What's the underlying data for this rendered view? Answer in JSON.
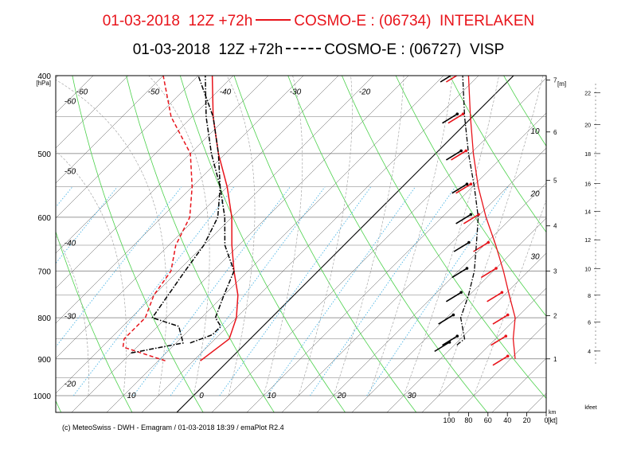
{
  "header": {
    "line1": {
      "date": "01-03-2018",
      "run": "12Z +72h",
      "model": "COSMO-E : (06734)",
      "station": "INTERLAKEN"
    },
    "line2": {
      "date": "01-03-2018",
      "run": "12Z +72h",
      "model": "COSMO-E : (06727)",
      "station": "VISP"
    }
  },
  "colors": {
    "interlaken": "#e8141b",
    "visp": "#000000",
    "isotherm": "#555555",
    "dry_adiabat": "#4bd14b",
    "moist_adiabat": "#9a9a9a",
    "mixing_ratio": "#4fb6e6"
  },
  "chart_data": {
    "type": "line",
    "subtype": "emagram (skew-T log-p)",
    "y_axis": {
      "label": "[hPa]",
      "scale": "log",
      "ylim": [
        1000,
        400
      ],
      "ticks": [
        "400",
        "500",
        "600",
        "700",
        "800",
        "900",
        "1000"
      ]
    },
    "x_axis": {
      "label": "",
      "ticks": [
        "10",
        "0",
        "10",
        "20",
        "30"
      ],
      "xlim": [
        -22,
        38
      ]
    },
    "isotherm_labels": [
      "-60",
      "-50",
      "-40",
      "-30",
      "-20",
      "-60",
      "-50",
      "-40",
      "-30",
      "-20",
      "10",
      "20",
      "30"
    ],
    "altitude_km": {
      "label": "[m]",
      "unit_label": "km",
      "ticks": [
        "1",
        "2",
        "3",
        "4",
        "5",
        "6",
        "7"
      ]
    },
    "altitude_kfeet": {
      "unit_label": "kfeet",
      "ticks": [
        "4",
        "6",
        "8",
        "10",
        "12",
        "14",
        "16",
        "18",
        "20",
        "22"
      ]
    },
    "wind_speed_axis": {
      "unit_label": "[kt]",
      "ticks": [
        "100",
        "80",
        "60",
        "40",
        "20",
        "0"
      ]
    },
    "series": [
      {
        "name": "INTERLAKEN",
        "line_style": "solid / dashed",
        "temperature": {
          "p": [
            905,
            850,
            800,
            750,
            700,
            650,
            600,
            550,
            500,
            450,
            400
          ],
          "T": [
            -4,
            -3,
            -5,
            -8,
            -12,
            -16,
            -20,
            -25,
            -31,
            -37,
            -43
          ]
        },
        "dewpoint": {
          "p": [
            905,
            870,
            850,
            800,
            750,
            700,
            650,
            600,
            550,
            500,
            450,
            400
          ],
          "T": [
            -9,
            -17,
            -18,
            -18,
            -20,
            -21,
            -24,
            -26,
            -30,
            -35,
            -43,
            -50
          ]
        },
        "wind_profile": {
          "p": [
            900,
            850,
            800,
            750,
            700,
            650,
            600,
            550,
            500,
            450,
            400
          ],
          "speed_kt": [
            32,
            34,
            32,
            38,
            44,
            52,
            62,
            70,
            75,
            78,
            80
          ]
        }
      },
      {
        "name": "VISP",
        "line_style": "dash-dot",
        "temperature": {
          "p": [
            860,
            840,
            820,
            800,
            750,
            700,
            650,
            600,
            550,
            500,
            450,
            400
          ],
          "T": [
            -8,
            -6,
            -6,
            -8,
            -10,
            -12,
            -17,
            -21,
            -26,
            -32,
            -38,
            -44
          ]
        },
        "dewpoint": {
          "p": [
            885,
            860,
            820,
            800,
            700,
            650,
            600,
            550,
            500,
            450,
            400
          ],
          "T": [
            -15,
            -9,
            -12,
            -17,
            -19,
            -20,
            -22,
            -26,
            -31,
            -37,
            -45
          ]
        },
        "wind_profile": {
          "p": [
            865,
            850,
            800,
            750,
            700,
            650,
            600,
            550,
            500,
            450,
            400
          ],
          "speed_kt": [
            92,
            84,
            88,
            80,
            74,
            72,
            70,
            74,
            80,
            84,
            86
          ]
        }
      }
    ]
  },
  "footer": "(c) MeteoSwiss - DWH - Emagram / 01-03-2018  18:39 / emaPlot R2.4"
}
